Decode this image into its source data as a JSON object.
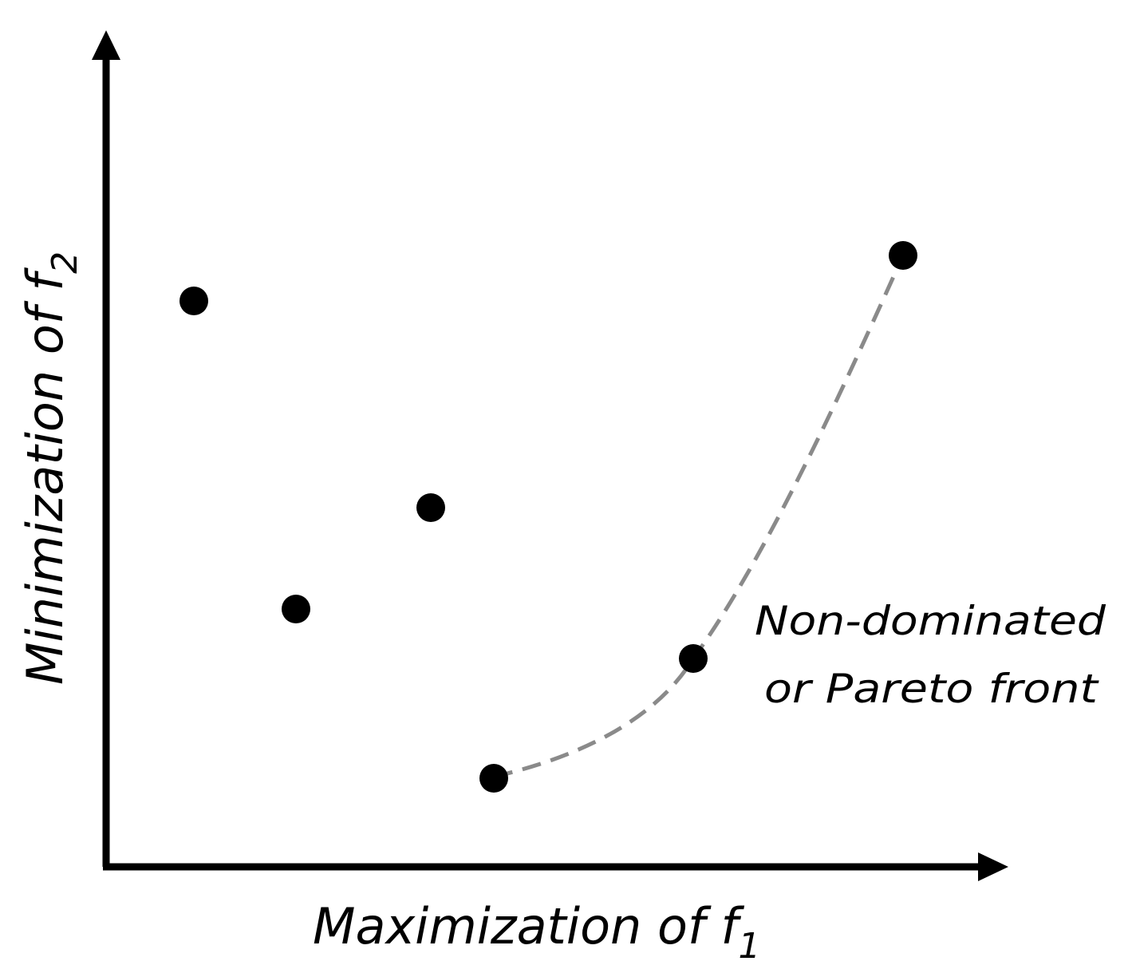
{
  "diagram": {
    "x_axis_label": {
      "text": "Maximization of ",
      "symbol": "f",
      "subscript": "1"
    },
    "y_axis_label": {
      "text": "Minimization of ",
      "symbol": "f",
      "subscript": "2"
    },
    "front_label": {
      "line1": "Non-dominated",
      "line2": "or Pareto front"
    },
    "colors": {
      "axes": "#000000",
      "points": "#000000",
      "front_curve": "#8a8a8a",
      "background": "#ffffff"
    }
  }
}
